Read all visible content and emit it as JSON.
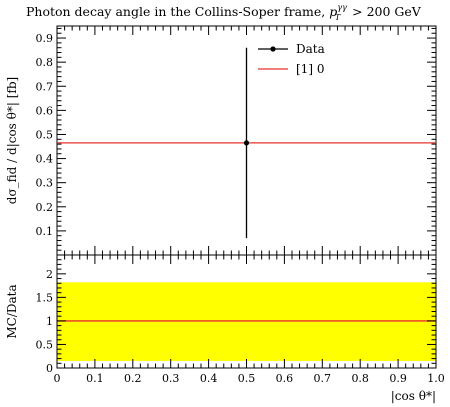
{
  "chart_data": [
    {
      "type": "scatter",
      "panel": "main",
      "title": "Photon decay angle in the Collins-Soper frame, ",
      "title_math": "p",
      "title_math_sup": "γγ",
      "title_math_sub": "T",
      "title_suffix": " > 200 GeV",
      "ylabel": "dσ_fid / d|cos θ*| [fb]",
      "ylim": [
        0,
        0.95
      ],
      "xlim": [
        0,
        1.0
      ],
      "y_ticks": [
        "0.1",
        "0.2",
        "0.3",
        "0.4",
        "0.5",
        "0.6",
        "0.7",
        "0.8",
        "0.9"
      ],
      "y_tick_values": [
        0.1,
        0.2,
        0.3,
        0.4,
        0.5,
        0.6,
        0.7,
        0.8,
        0.9
      ],
      "series": [
        {
          "name": "Data",
          "color": "#000000",
          "x": [
            0.5
          ],
          "y": [
            0.465
          ],
          "yerr_low": [
            0.395
          ],
          "yerr_high": [
            0.395
          ]
        },
        {
          "name": "[1] 0",
          "color": "#e8312a",
          "type": "hline",
          "y": [
            0.465
          ]
        }
      ],
      "legend": "top-right"
    },
    {
      "type": "area",
      "panel": "ratio",
      "ylabel": "MC/Data",
      "xlabel": "|cos θ*|",
      "ylim": [
        0,
        2.4
      ],
      "xlim": [
        0,
        1.0
      ],
      "y_ticks": [
        "0",
        "0.5",
        "1",
        "1.5",
        "2"
      ],
      "y_tick_values": [
        0,
        0.5,
        1.0,
        1.5,
        2.0
      ],
      "x_ticks": [
        "0",
        "0.1",
        "0.2",
        "0.3",
        "0.4",
        "0.5",
        "0.6",
        "0.7",
        "0.8",
        "0.9",
        "1.0"
      ],
      "x_tick_values": [
        0,
        0.1,
        0.2,
        0.3,
        0.4,
        0.5,
        0.6,
        0.7,
        0.8,
        0.9,
        1.0
      ],
      "band": {
        "low": 0.15,
        "high": 1.82,
        "color": "#ffff00"
      },
      "ratio_line": {
        "y": 1.0,
        "color": "#e8312a"
      }
    }
  ]
}
